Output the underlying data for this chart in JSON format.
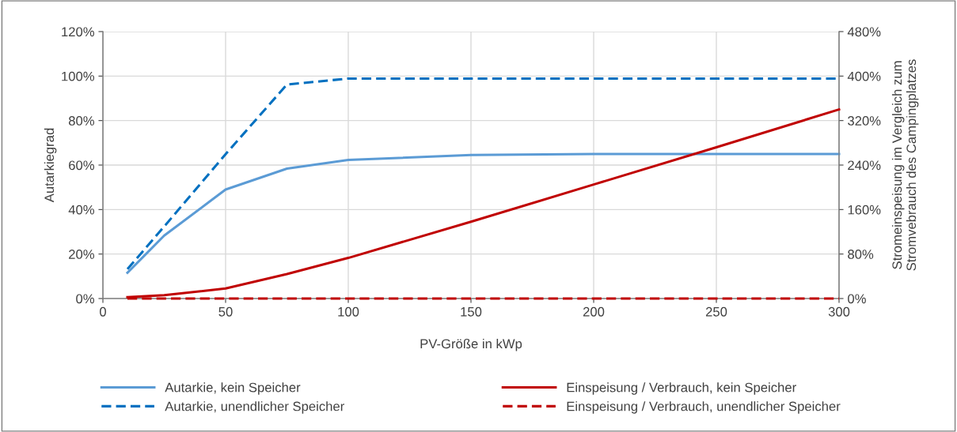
{
  "chart_data": {
    "type": "line",
    "xlabel": "PV-Größe in kWp",
    "ylabel": "Autarkiegrad",
    "y2label": "Stromeinspeisung im Vergleich zum\nStromvebrauch des Campingplatzes",
    "x": [
      10,
      25,
      50,
      75,
      100,
      150,
      200,
      250,
      300
    ],
    "series": [
      {
        "name": "Autarkie, kein Speicher",
        "color": "#5b9bd5",
        "line_style": "solid",
        "values": [
          11.6,
          28.3,
          49,
          58.4,
          62.3,
          64.5,
          65,
          65,
          65
        ]
      },
      {
        "name": "Autarkie, unendlicher Speicher",
        "color": "#0070c0",
        "line_style": "dashed",
        "values": [
          13.2,
          32.4,
          64.9,
          96.2,
          98.9,
          98.9,
          98.9,
          98.9,
          98.9
        ]
      },
      {
        "name": "Einspeisung / Verbrauch, kein Speicher",
        "color": "#c00000",
        "line_style": "solid",
        "axis": "y2",
        "values": [
          2.4,
          6,
          18,
          44,
          73,
          138,
          205,
          272,
          340
        ]
      },
      {
        "name": "Einspeisung / Verbrauch, unendlicher Speicher",
        "color": "#c00000",
        "line_style": "dashed",
        "axis": "y2",
        "values": [
          0,
          0,
          0,
          0,
          0,
          0,
          0,
          0,
          0
        ]
      }
    ],
    "xlim": [
      0,
      300
    ],
    "xticks": [
      0,
      50,
      100,
      150,
      200,
      250,
      300
    ],
    "ylim": [
      0,
      120
    ],
    "yticks": [
      {
        "value": 0,
        "label": "0%"
      },
      {
        "value": 20,
        "label": "20%"
      },
      {
        "value": 40,
        "label": "40%"
      },
      {
        "value": 60,
        "label": "60%"
      },
      {
        "value": 80,
        "label": "80%"
      },
      {
        "value": 100,
        "label": "100%"
      },
      {
        "value": 120,
        "label": "120%"
      }
    ],
    "y2lim": [
      0,
      480
    ],
    "y2ticks": [
      {
        "value": 0,
        "label": "0%"
      },
      {
        "value": 80,
        "label": "80%"
      },
      {
        "value": 160,
        "label": "160%"
      },
      {
        "value": 240,
        "label": "240%"
      },
      {
        "value": 320,
        "label": "320%"
      },
      {
        "value": 400,
        "label": "400%"
      },
      {
        "value": 480,
        "label": "480%"
      }
    ],
    "grid": true,
    "legend": "bottom",
    "marker": "none"
  }
}
